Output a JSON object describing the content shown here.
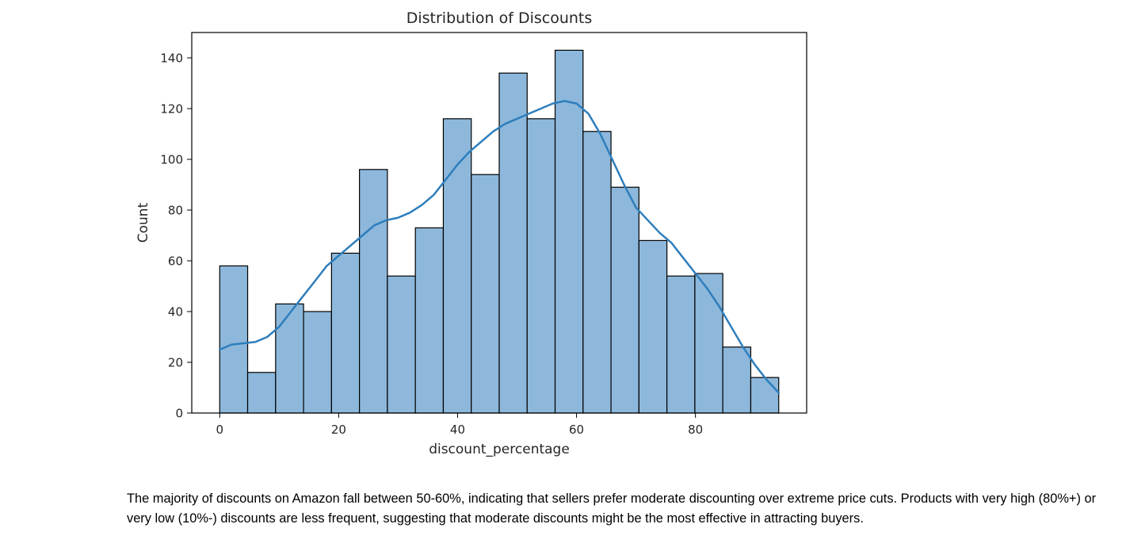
{
  "chart_data": {
    "type": "histogram",
    "title": "Distribution of Discounts",
    "xlabel": "discount_percentage",
    "ylabel": "Count",
    "xlim": [
      -4.7,
      98.7
    ],
    "ylim": [
      0,
      150
    ],
    "xticks": [
      0,
      20,
      40,
      60,
      80
    ],
    "yticks": [
      0,
      20,
      40,
      60,
      80,
      100,
      120,
      140
    ],
    "bin_start": 0,
    "bin_width": 4.7,
    "counts": [
      58,
      16,
      43,
      40,
      63,
      96,
      54,
      73,
      116,
      94,
      134,
      116,
      143,
      111,
      89,
      68,
      54,
      55,
      26,
      14
    ],
    "kde": {
      "x": [
        0,
        2,
        4,
        6,
        8,
        10,
        12,
        14,
        16,
        18,
        20,
        22,
        24,
        26,
        28,
        30,
        32,
        34,
        36,
        38,
        40,
        42,
        44,
        46,
        48,
        50,
        52,
        54,
        56,
        58,
        60,
        62,
        64,
        66,
        68,
        70,
        72,
        74,
        76,
        78,
        80,
        82,
        84,
        86,
        88,
        90,
        92,
        94
      ],
      "y": [
        25,
        27,
        27.5,
        28,
        30,
        34,
        40,
        46,
        52,
        58,
        62,
        66,
        70,
        74,
        76,
        77,
        79,
        82,
        86,
        92,
        98,
        103,
        107,
        111,
        114,
        116,
        118,
        120,
        122,
        123,
        122,
        118,
        110,
        100,
        90,
        81,
        76,
        71,
        67,
        61,
        55,
        49,
        42,
        34,
        26,
        19,
        13,
        8
      ]
    },
    "bar_color": "#8db8db",
    "bar_edge_color": "#000000",
    "kde_color": "#2e7ebc",
    "grid": false,
    "legend": null
  },
  "caption": "The majority of discounts on Amazon fall between 50-60%, indicating that sellers prefer moderate discounting over extreme price cuts. Products with very high (80%+) or very low (10%-) discounts are less frequent, suggesting that moderate discounts might be the most effective in attracting buyers."
}
